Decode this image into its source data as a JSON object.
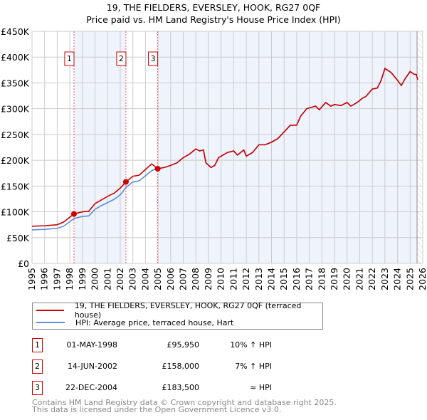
{
  "chart_data": {
    "type": "line",
    "title": "19, THE FIELDERS, EVERSLEY, HOOK, RG27 0QF",
    "subtitle": "Price paid vs. HM Land Registry's House Price Index (HPI)",
    "xlim": [
      1995,
      2026
    ],
    "ylim": [
      0,
      450000
    ],
    "y_ticks": [
      "£0",
      "£50K",
      "£100K",
      "£150K",
      "£200K",
      "£250K",
      "£300K",
      "£350K",
      "£400K",
      "£450K"
    ],
    "x_ticks": [
      "1995",
      "1996",
      "1997",
      "1998",
      "1999",
      "2000",
      "2001",
      "2002",
      "2003",
      "2004",
      "2005",
      "2006",
      "2007",
      "2008",
      "2009",
      "2010",
      "2011",
      "2012",
      "2013",
      "2014",
      "2015",
      "2016",
      "2017",
      "2018",
      "2019",
      "2020",
      "2021",
      "2022",
      "2023",
      "2024",
      "2025",
      "2026"
    ],
    "colors": {
      "price": "#cc0000",
      "hpi": "#5b8fd4",
      "shade": "#eef3fc"
    },
    "series": [
      {
        "name": "19, THE FIELDERS, EVERSLEY, HOOK, RG27 0QF (terraced house)",
        "points": [
          [
            1995,
            72
          ],
          [
            1996,
            73
          ],
          [
            1997,
            75
          ],
          [
            1997.5,
            80
          ],
          [
            1998.33,
            95.95
          ],
          [
            1999,
            100
          ],
          [
            1999.5,
            101
          ],
          [
            2000,
            116
          ],
          [
            2000.5,
            123
          ],
          [
            2001,
            130
          ],
          [
            2001.5,
            136
          ],
          [
            2002,
            146
          ],
          [
            2002.45,
            158
          ],
          [
            2003,
            169
          ],
          [
            2003.5,
            171
          ],
          [
            2004,
            182
          ],
          [
            2004.5,
            193
          ],
          [
            2004.97,
            183.5
          ],
          [
            2005.5,
            186
          ],
          [
            2006,
            190
          ],
          [
            2006.5,
            195
          ],
          [
            2007,
            205
          ],
          [
            2007.5,
            212
          ],
          [
            2008,
            222
          ],
          [
            2008.3,
            218
          ],
          [
            2008.6,
            220
          ],
          [
            2008.8,
            195
          ],
          [
            2009.2,
            186
          ],
          [
            2009.5,
            190
          ],
          [
            2009.8,
            205
          ],
          [
            2010.5,
            215
          ],
          [
            2011,
            218
          ],
          [
            2011.3,
            210
          ],
          [
            2011.8,
            220
          ],
          [
            2012,
            208
          ],
          [
            2012.5,
            215
          ],
          [
            2013,
            230
          ],
          [
            2013.5,
            230
          ],
          [
            2014,
            235
          ],
          [
            2014.5,
            242
          ],
          [
            2015,
            255
          ],
          [
            2015.5,
            268
          ],
          [
            2016,
            268
          ],
          [
            2016.3,
            285
          ],
          [
            2016.8,
            300
          ],
          [
            2017.5,
            305
          ],
          [
            2017.8,
            298
          ],
          [
            2018.3,
            312
          ],
          [
            2018.7,
            305
          ],
          [
            2019,
            308
          ],
          [
            2019.5,
            306
          ],
          [
            2020,
            312
          ],
          [
            2020.3,
            305
          ],
          [
            2020.8,
            312
          ],
          [
            2021.2,
            320
          ],
          [
            2021.5,
            324
          ],
          [
            2022,
            338
          ],
          [
            2022.4,
            340
          ],
          [
            2022.7,
            355
          ],
          [
            2023,
            378
          ],
          [
            2023.5,
            370
          ],
          [
            2023.8,
            361
          ],
          [
            2024,
            355
          ],
          [
            2024.3,
            345
          ],
          [
            2024.6,
            358
          ],
          [
            2025,
            372
          ],
          [
            2025.3,
            367
          ],
          [
            2025.5,
            366
          ],
          [
            2025.6,
            356
          ]
        ]
      },
      {
        "name": "HPI: Average price, terraced house, Hart",
        "points": [
          [
            1995,
            65
          ],
          [
            1996,
            66
          ],
          [
            1997,
            68
          ],
          [
            1997.5,
            72
          ],
          [
            1998.33,
            87
          ],
          [
            1999,
            91
          ],
          [
            1999.5,
            92
          ],
          [
            2000,
            105
          ],
          [
            2000.5,
            112
          ],
          [
            2001,
            118
          ],
          [
            2001.5,
            124
          ],
          [
            2002,
            133
          ],
          [
            2002.45,
            147
          ],
          [
            2003,
            158
          ],
          [
            2003.5,
            160
          ],
          [
            2004,
            170
          ],
          [
            2004.5,
            180
          ],
          [
            2004.97,
            184
          ],
          [
            2005.5,
            186
          ],
          [
            2006,
            190
          ],
          [
            2006.5,
            195
          ],
          [
            2007,
            205
          ],
          [
            2007.5,
            212
          ],
          [
            2008,
            222
          ],
          [
            2008.3,
            218
          ],
          [
            2008.6,
            220
          ],
          [
            2008.8,
            195
          ],
          [
            2009.2,
            186
          ],
          [
            2009.5,
            190
          ],
          [
            2009.8,
            205
          ],
          [
            2010.5,
            215
          ],
          [
            2011,
            218
          ],
          [
            2011.3,
            210
          ],
          [
            2011.8,
            220
          ],
          [
            2012,
            208
          ],
          [
            2012.5,
            215
          ],
          [
            2013,
            230
          ],
          [
            2013.5,
            230
          ],
          [
            2014,
            235
          ],
          [
            2014.5,
            242
          ],
          [
            2015,
            255
          ],
          [
            2015.5,
            268
          ],
          [
            2016,
            268
          ],
          [
            2016.3,
            285
          ],
          [
            2016.8,
            300
          ],
          [
            2017.5,
            305
          ],
          [
            2017.8,
            298
          ],
          [
            2018.3,
            312
          ],
          [
            2018.7,
            305
          ],
          [
            2019,
            308
          ],
          [
            2019.5,
            306
          ],
          [
            2020,
            312
          ],
          [
            2020.3,
            305
          ],
          [
            2020.8,
            312
          ],
          [
            2021.2,
            320
          ],
          [
            2021.5,
            324
          ],
          [
            2022,
            338
          ],
          [
            2022.4,
            340
          ],
          [
            2022.7,
            355
          ],
          [
            2023,
            378
          ],
          [
            2023.5,
            370
          ],
          [
            2023.8,
            361
          ],
          [
            2024,
            355
          ],
          [
            2024.3,
            345
          ],
          [
            2024.6,
            358
          ],
          [
            2025,
            372
          ],
          [
            2025.3,
            367
          ],
          [
            2025.5,
            366
          ]
        ]
      }
    ],
    "sales": [
      {
        "n": "1",
        "x": 1998.33,
        "value": 95950,
        "date": "01-MAY-1998",
        "price": "£95,950",
        "hpi": "10% ↑ HPI"
      },
      {
        "n": "2",
        "x": 2002.45,
        "value": 158000,
        "date": "14-JUN-2002",
        "price": "£158,000",
        "hpi": "7% ↑ HPI"
      },
      {
        "n": "3",
        "x": 2004.97,
        "value": 183500,
        "date": "22-DEC-2004",
        "price": "£183,500",
        "hpi": "≈ HPI"
      }
    ],
    "data_end": 2025.55
  },
  "footer": [
    "Contains HM Land Registry data © Crown copyright and database right 2025.",
    "This data is licensed under the Open Government Licence v3.0."
  ]
}
